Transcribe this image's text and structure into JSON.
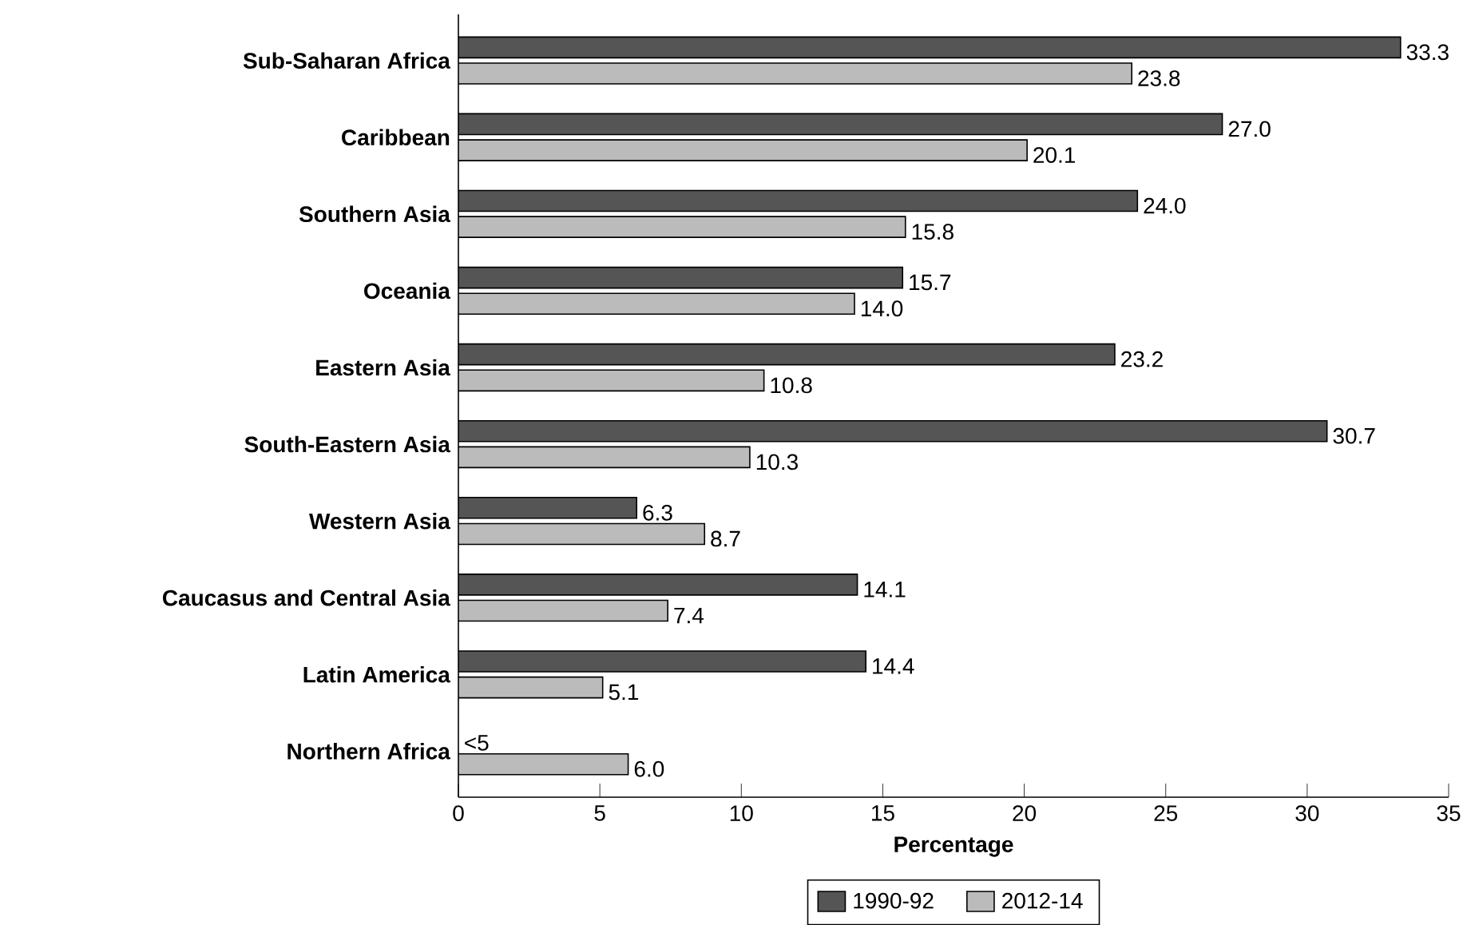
{
  "chart_data": {
    "type": "bar",
    "orientation": "horizontal",
    "categories": [
      "Sub-Saharan Africa",
      "Caribbean",
      "Southern Asia",
      "Oceania",
      "Eastern Asia",
      "South-Eastern Asia",
      "Western Asia",
      "Caucasus and Central Asia",
      "Latin America",
      "Northern Africa"
    ],
    "xlabel": "Percentage",
    "xlim": [
      0,
      35
    ],
    "xticks": [
      0,
      5,
      10,
      15,
      20,
      25,
      30,
      35
    ],
    "legend": "bottom",
    "series": [
      {
        "name": "1990-92",
        "color": "#555555",
        "values": [
          33.3,
          27.0,
          24.0,
          15.7,
          23.2,
          30.7,
          6.3,
          14.1,
          14.4,
          null
        ],
        "value_labels": [
          "33.3",
          "27.0",
          "24.0",
          "15.7",
          "23.2",
          "30.7",
          "6.3",
          "14.1",
          "14.4",
          "<5"
        ]
      },
      {
        "name": "2012-14",
        "color": "#bbbbbb",
        "values": [
          23.8,
          20.1,
          15.8,
          14.0,
          10.8,
          10.3,
          8.7,
          7.4,
          5.1,
          6.0
        ],
        "value_labels": [
          "23.8",
          "20.1",
          "15.8",
          "14.0",
          "10.8",
          "10.3",
          "8.7",
          "7.4",
          "5.1",
          "6.0"
        ]
      }
    ]
  }
}
